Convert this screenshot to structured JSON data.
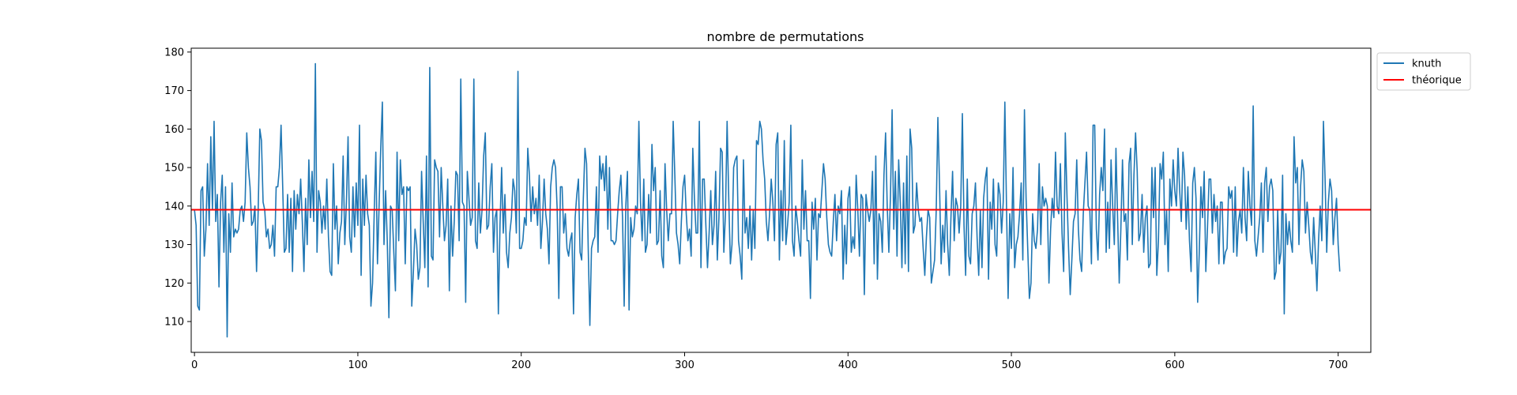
{
  "chart_data": {
    "type": "line",
    "title": "nombre de permutations",
    "xlabel": "",
    "ylabel": "",
    "xlim": [
      -2,
      720
    ],
    "ylim": [
      102,
      181
    ],
    "xticks": [
      0,
      100,
      200,
      300,
      400,
      500,
      600,
      700
    ],
    "yticks": [
      110,
      120,
      130,
      140,
      150,
      160,
      170,
      180
    ],
    "grid": false,
    "legend_position": "outside-top-right",
    "series": [
      {
        "name": "knuth",
        "color": "#1f77b4",
        "x_start": 0,
        "x_step": 1,
        "values": [
          139,
          135,
          114,
          113,
          144,
          145,
          127,
          134,
          151,
          135,
          158,
          139,
          162,
          136,
          143,
          119,
          141,
          148,
          128,
          145,
          106,
          138,
          128,
          146,
          132,
          134,
          133,
          134,
          139,
          140,
          136,
          141,
          159,
          150,
          145,
          135,
          136,
          140,
          123,
          139,
          160,
          157,
          141,
          139,
          132,
          134,
          129,
          130,
          135,
          127,
          145,
          145,
          150,
          161,
          145,
          128,
          129,
          143,
          128,
          142,
          123,
          144,
          134,
          143,
          138,
          147,
          136,
          123,
          142,
          130,
          152,
          137,
          149,
          136,
          177,
          128,
          144,
          141,
          133,
          140,
          134,
          147,
          132,
          123,
          122,
          151,
          134,
          140,
          125,
          133,
          136,
          153,
          130,
          141,
          158,
          132,
          128,
          145,
          132,
          146,
          135,
          161,
          122,
          147,
          135,
          148,
          138,
          135,
          114,
          120,
          138,
          154,
          125,
          140,
          155,
          167,
          130,
          144,
          131,
          111,
          140,
          139,
          128,
          118,
          154,
          131,
          152,
          143,
          145,
          125,
          145,
          144,
          145,
          114,
          123,
          134,
          130,
          121,
          124,
          149,
          136,
          124,
          153,
          119,
          176,
          127,
          126,
          152,
          150,
          149,
          132,
          150,
          140,
          131,
          135,
          147,
          118,
          140,
          127,
          136,
          149,
          148,
          131,
          173,
          141,
          140,
          115,
          149,
          142,
          135,
          137,
          173,
          131,
          129,
          146,
          133,
          139,
          153,
          159,
          134,
          135,
          145,
          151,
          128,
          137,
          139,
          112,
          135,
          150,
          133,
          143,
          128,
          124,
          133,
          137,
          147,
          144,
          133,
          175,
          129,
          129,
          131,
          137,
          135,
          155,
          148,
          136,
          145,
          138,
          142,
          135,
          148,
          129,
          136,
          147,
          138,
          134,
          125,
          145,
          150,
          152,
          150,
          139,
          116,
          145,
          145,
          133,
          138,
          129,
          127,
          131,
          133,
          112,
          137,
          143,
          147,
          128,
          126,
          142,
          155,
          151,
          129,
          109,
          129,
          131,
          132,
          145,
          128,
          153,
          147,
          151,
          144,
          153,
          134,
          150,
          131,
          131,
          130,
          131,
          138,
          144,
          148,
          137,
          114,
          140,
          149,
          113,
          137,
          132,
          134,
          140,
          138,
          162,
          141,
          131,
          147,
          128,
          130,
          143,
          133,
          156,
          144,
          150,
          130,
          131,
          144,
          127,
          124,
          151,
          139,
          131,
          138,
          138,
          162,
          148,
          133,
          130,
          125,
          136,
          145,
          148,
          138,
          131,
          134,
          127,
          155,
          142,
          133,
          133,
          162,
          124,
          147,
          147,
          135,
          124,
          133,
          144,
          130,
          135,
          149,
          126,
          137,
          155,
          154,
          128,
          138,
          162,
          142,
          125,
          130,
          150,
          152,
          153,
          131,
          127,
          121,
          152,
          133,
          137,
          129,
          140,
          126,
          139,
          129,
          157,
          156,
          162,
          160,
          152,
          147,
          136,
          131,
          138,
          147,
          141,
          131,
          156,
          159,
          126,
          144,
          131,
          157,
          130,
          135,
          141,
          161,
          131,
          127,
          140,
          136,
          131,
          127,
          152,
          134,
          144,
          131,
          131,
          116,
          141,
          134,
          142,
          126,
          138,
          137,
          144,
          151,
          147,
          137,
          130,
          128,
          127,
          136,
          143,
          131,
          140,
          138,
          144,
          121,
          135,
          125,
          142,
          145,
          128,
          132,
          129,
          148,
          139,
          127,
          143,
          142,
          117,
          143,
          139,
          136,
          139,
          149,
          125,
          153,
          121,
          138,
          136,
          128,
          148,
          159,
          140,
          128,
          143,
          165,
          134,
          149,
          127,
          152,
          141,
          124,
          146,
          125,
          153,
          123,
          160,
          155,
          133,
          135,
          146,
          139,
          136,
          137,
          129,
          122,
          132,
          139,
          137,
          120,
          123,
          126,
          139,
          163,
          146,
          125,
          135,
          128,
          144,
          130,
          122,
          137,
          149,
          131,
          142,
          140,
          133,
          140,
          164,
          135,
          122,
          147,
          127,
          125,
          138,
          140,
          146,
          132,
          122,
          139,
          124,
          142,
          147,
          150,
          121,
          141,
          134,
          147,
          130,
          127,
          146,
          143,
          133,
          141,
          167,
          140,
          116,
          138,
          129,
          150,
          124,
          130,
          132,
          138,
          146,
          126,
          165,
          142,
          129,
          116,
          120,
          138,
          131,
          129,
          134,
          151,
          130,
          145,
          140,
          142,
          140,
          120,
          134,
          142,
          137,
          154,
          140,
          138,
          151,
          133,
          123,
          159,
          143,
          129,
          117,
          126,
          136,
          138,
          152,
          134,
          126,
          123,
          138,
          146,
          154,
          140,
          139,
          125,
          161,
          161,
          134,
          126,
          143,
          150,
          144,
          160,
          128,
          141,
          129,
          152,
          140,
          130,
          155,
          137,
          120,
          134,
          152,
          136,
          138,
          126,
          151,
          155,
          130,
          148,
          159,
          149,
          131,
          133,
          143,
          128,
          137,
          140,
          124,
          125,
          150,
          137,
          150,
          122,
          131,
          151,
          147,
          154,
          130,
          139,
          123,
          147,
          140,
          152,
          144,
          140,
          155,
          144,
          136,
          154,
          148,
          134,
          145,
          131,
          123,
          146,
          150,
          142,
          115,
          128,
          145,
          137,
          149,
          123,
          134,
          147,
          147,
          133,
          143,
          136,
          140,
          125,
          141,
          141,
          125,
          128,
          129,
          145,
          142,
          144,
          128,
          145,
          127,
          136,
          139,
          133,
          150,
          137,
          131,
          149,
          140,
          135,
          166,
          131,
          127,
          132,
          137,
          146,
          128,
          146,
          150,
          136,
          145,
          147,
          144,
          121,
          123,
          139,
          125,
          128,
          148,
          112,
          138,
          130,
          136,
          131,
          128,
          158,
          146,
          150,
          130,
          145,
          152,
          149,
          133,
          141,
          135,
          128,
          125,
          137,
          128,
          118,
          131,
          140,
          131,
          162,
          147,
          128,
          141,
          147,
          144,
          130,
          137,
          142,
          130,
          123
        ]
      },
      {
        "name": "théorique",
        "color": "#ff0000",
        "x": [
          -2,
          720
        ],
        "values": [
          139.04,
          139.04
        ]
      }
    ]
  }
}
